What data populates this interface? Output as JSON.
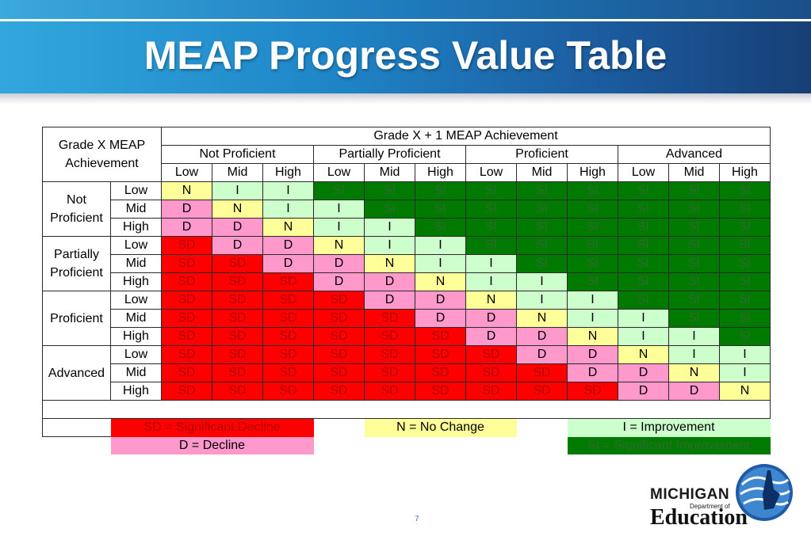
{
  "slide": {
    "title": "MEAP Progress Value Table",
    "page_number": "7"
  },
  "table": {
    "top_header": "Grade X + 1 MEAP Achievement",
    "corner_label_line1": "Grade X MEAP",
    "corner_label_line2": "Achievement",
    "column_groups": [
      "Not Proficient",
      "Partially Proficient",
      "Proficient",
      "Advanced"
    ],
    "sub_levels": [
      "Low",
      "Mid",
      "High"
    ],
    "row_groups": [
      {
        "label_lines": [
          "Not",
          "Proficient"
        ],
        "rows": [
          [
            "N",
            "I",
            "I",
            "SI",
            "SI",
            "SI",
            "SI",
            "SI",
            "SI",
            "SI",
            "SI",
            "SI"
          ],
          [
            "D",
            "N",
            "I",
            "I",
            "SI",
            "SI",
            "SI",
            "SI",
            "SI",
            "SI",
            "SI",
            "SI"
          ],
          [
            "D",
            "D",
            "N",
            "I",
            "I",
            "SI",
            "SI",
            "SI",
            "SI",
            "SI",
            "SI",
            "SI"
          ]
        ]
      },
      {
        "label_lines": [
          "Partially",
          "Proficient"
        ],
        "rows": [
          [
            "SD",
            "D",
            "D",
            "N",
            "I",
            "I",
            "SI",
            "SI",
            "SI",
            "SI",
            "SI",
            "SI"
          ],
          [
            "SD",
            "SD",
            "D",
            "D",
            "N",
            "I",
            "I",
            "SI",
            "SI",
            "SI",
            "SI",
            "SI"
          ],
          [
            "SD",
            "SD",
            "SD",
            "D",
            "D",
            "N",
            "I",
            "I",
            "SI",
            "SI",
            "SI",
            "SI"
          ]
        ]
      },
      {
        "label_lines": [
          "Proficient"
        ],
        "rows": [
          [
            "SD",
            "SD",
            "SD",
            "SD",
            "D",
            "D",
            "N",
            "I",
            "I",
            "SI",
            "SI",
            "SI"
          ],
          [
            "SD",
            "SD",
            "SD",
            "SD",
            "SD",
            "D",
            "D",
            "N",
            "I",
            "I",
            "SI",
            "SI"
          ],
          [
            "SD",
            "SD",
            "SD",
            "SD",
            "SD",
            "SD",
            "D",
            "D",
            "N",
            "I",
            "I",
            "SI"
          ]
        ]
      },
      {
        "label_lines": [
          "Advanced"
        ],
        "rows": [
          [
            "SD",
            "SD",
            "SD",
            "SD",
            "SD",
            "SD",
            "SD",
            "D",
            "D",
            "N",
            "I",
            "I"
          ],
          [
            "SD",
            "SD",
            "SD",
            "SD",
            "SD",
            "SD",
            "SD",
            "SD",
            "D",
            "D",
            "N",
            "I"
          ],
          [
            "SD",
            "SD",
            "SD",
            "SD",
            "SD",
            "SD",
            "SD",
            "SD",
            "SD",
            "D",
            "D",
            "N"
          ]
        ]
      }
    ]
  },
  "legend": {
    "sd": "SD = Significant Decline",
    "d": "D = Decline",
    "n": "N = No Change",
    "i": "I = Improvement",
    "si": "SI = Significant Improvement"
  },
  "colors": {
    "SD": "#ff0000",
    "D": "#ff99cc",
    "N": "#ffff99",
    "I": "#ccffcc",
    "SI": "#007a00",
    "banner": "#1f86c8"
  },
  "logo": {
    "line1": "MICHIGAN",
    "line2": "Department of",
    "line3": "Education"
  }
}
